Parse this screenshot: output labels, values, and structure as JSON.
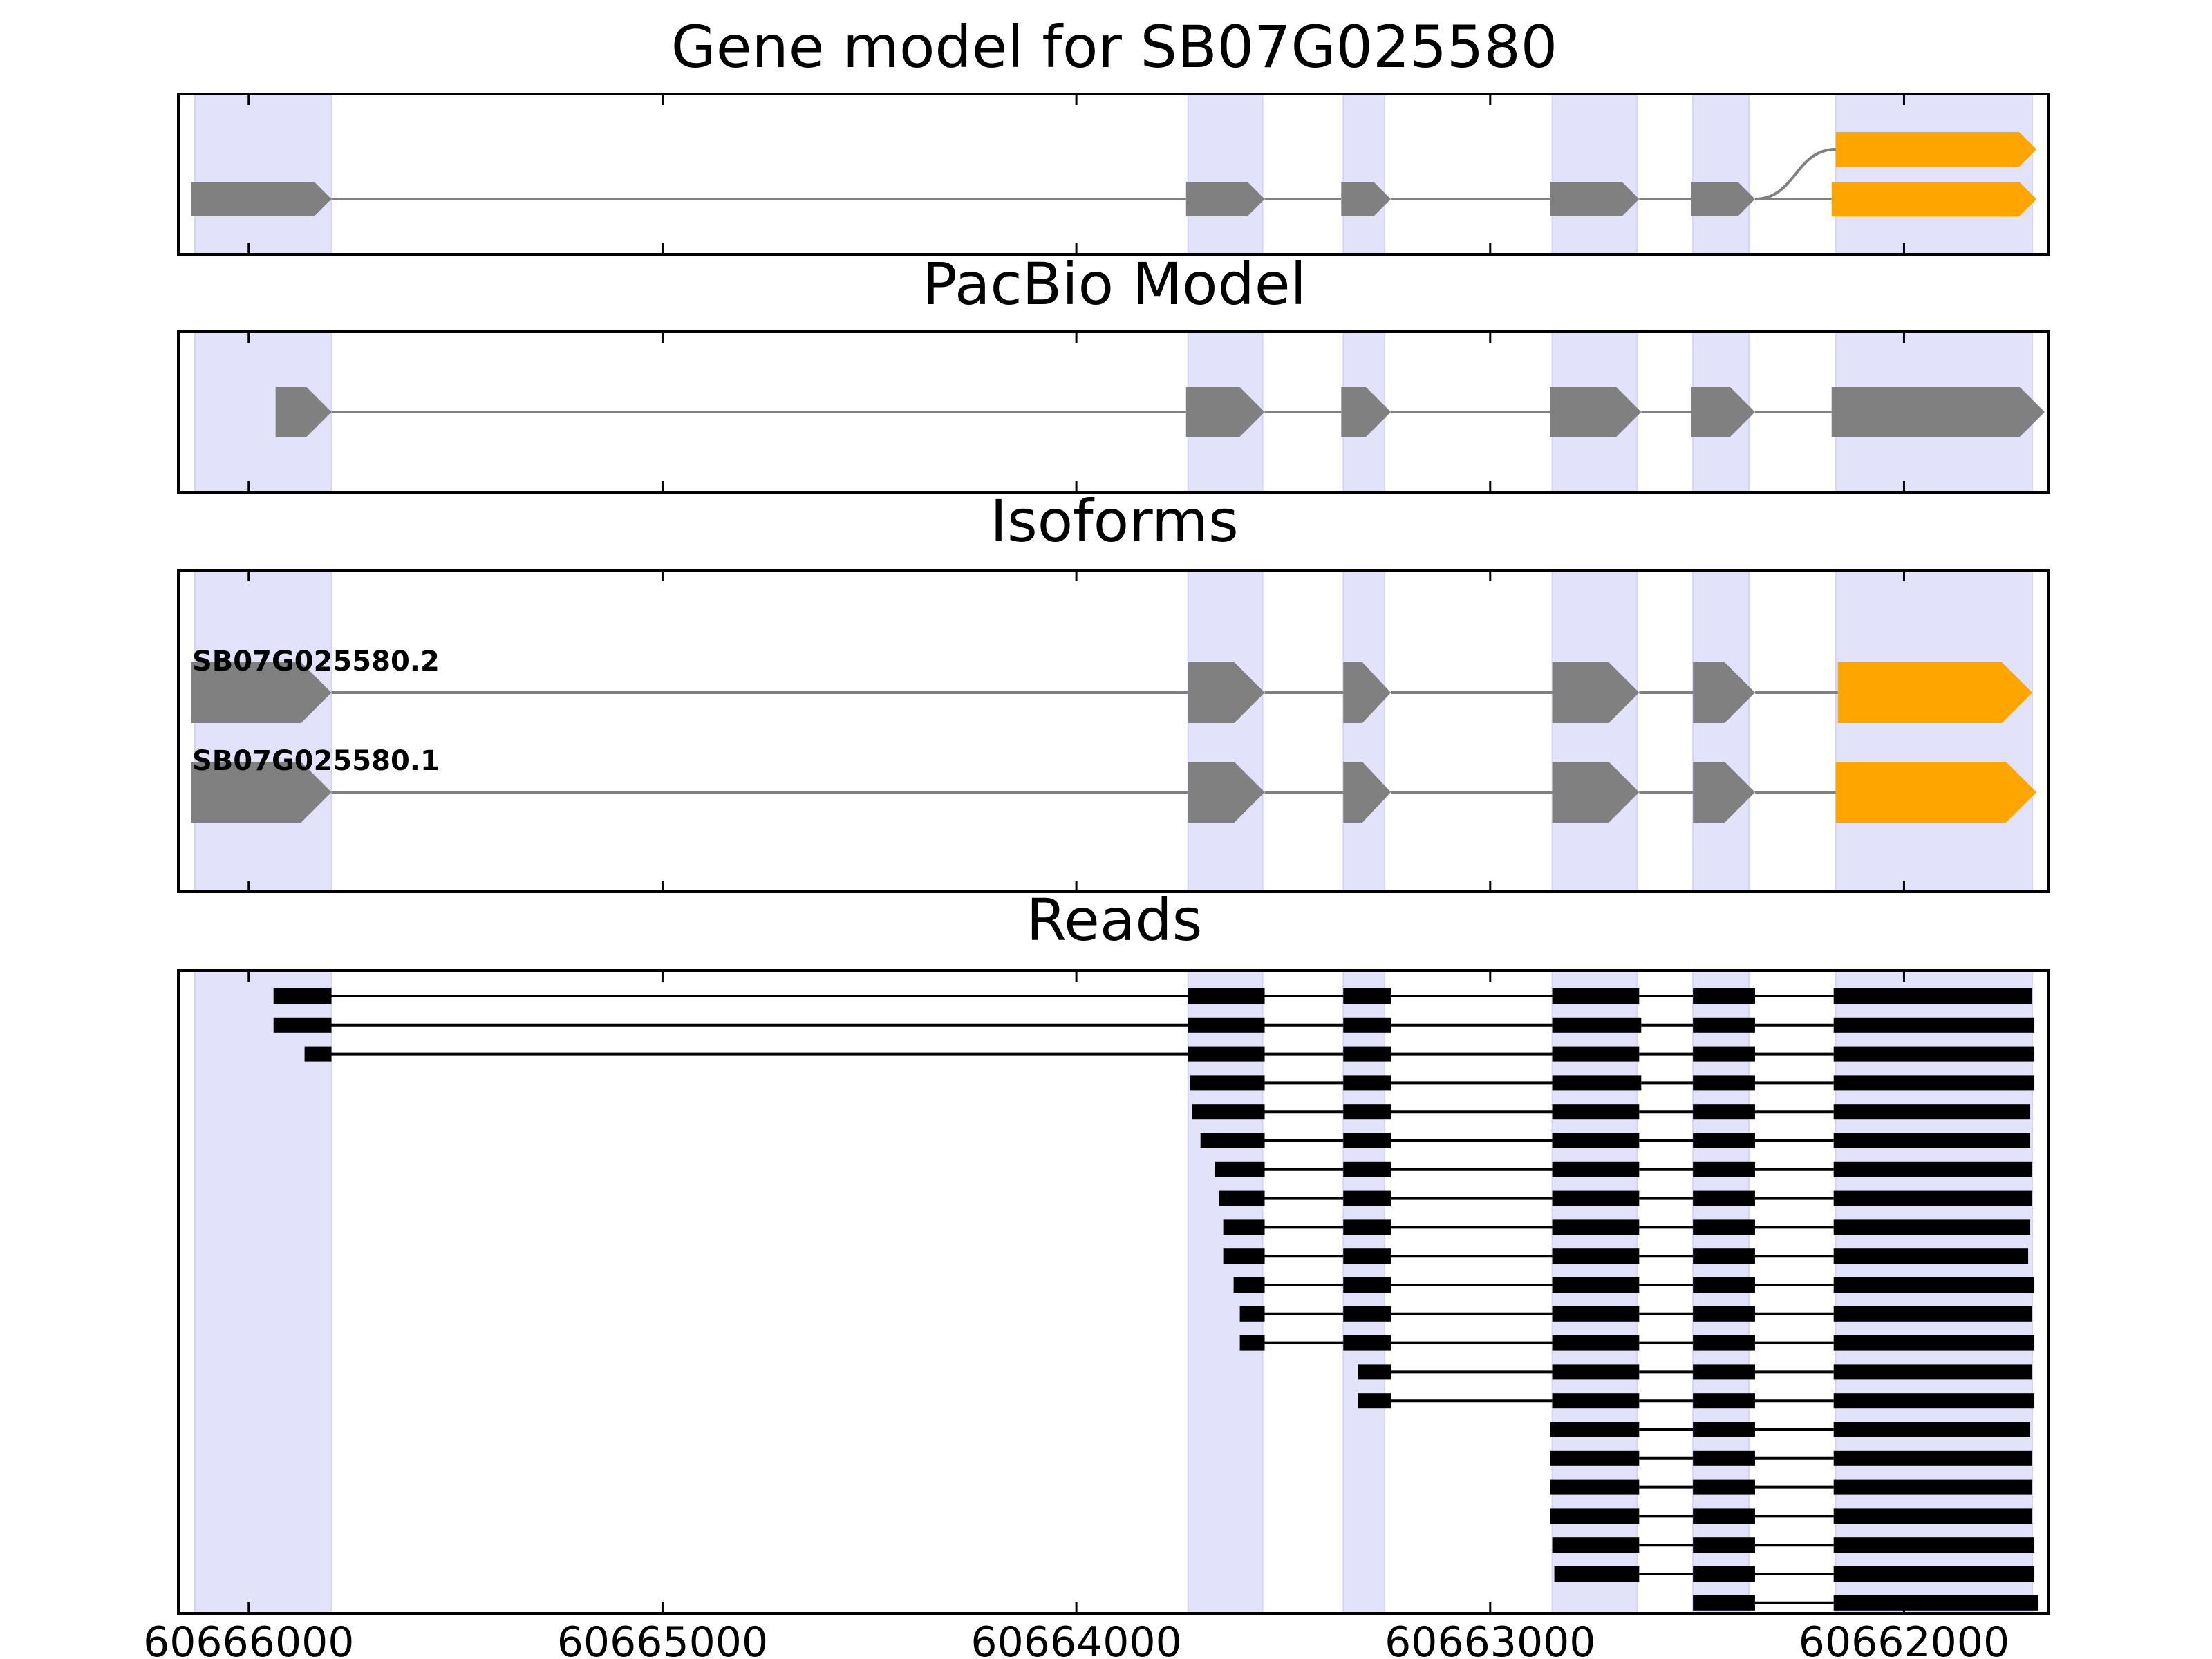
{
  "chart_data": {
    "type": "gene_track",
    "xlim": [
      60666170,
      60661650
    ],
    "xaxis_reversed": true,
    "x_ticks": [
      60666000,
      60665000,
      60664000,
      60663000,
      60662000
    ],
    "x_tick_labels": [
      "60666000",
      "60665000",
      "60664000",
      "60663000",
      "60662000"
    ],
    "colors": {
      "utr": "#808080",
      "cds": "#ffa500",
      "read": "#000000",
      "intron": "#808080",
      "highlight": "#e2e2fb"
    },
    "highlight_regions": [
      [
        60666130,
        60665800
      ],
      [
        60663730,
        60663550
      ],
      [
        60663355,
        60663255
      ],
      [
        60662850,
        60662645
      ],
      [
        60662510,
        60662375
      ],
      [
        60662165,
        60661690
      ]
    ],
    "panels": [
      {
        "title": "Gene model for SB07G025580",
        "exons_layout": "splice_graph",
        "tracks": [
          {
            "row": 0,
            "exons": [
              [
                60662165,
                60661680,
                "cds"
              ]
            ]
          },
          {
            "row": 1,
            "exons": [
              [
                60666140,
                60665800,
                "utr"
              ],
              [
                60663735,
                60663545,
                "utr"
              ],
              [
                60663360,
                60663240,
                "utr"
              ],
              [
                60662855,
                60662640,
                "utr"
              ],
              [
                60662515,
                60662360,
                "utr"
              ],
              [
                60662175,
                60661680,
                "cds"
              ]
            ]
          }
        ],
        "edges": [
          [
            1,
            4,
            0,
            0
          ]
        ]
      },
      {
        "title": "PacBio Model",
        "tracks": [
          {
            "row": 0,
            "exons": [
              [
                60665935,
                60665800,
                "utr"
              ],
              [
                60663735,
                60663545,
                "utr"
              ],
              [
                60663360,
                60663240,
                "utr"
              ],
              [
                60662855,
                60662635,
                "utr"
              ],
              [
                60662515,
                60662360,
                "utr"
              ],
              [
                60662175,
                60661660,
                "utr"
              ]
            ]
          }
        ]
      },
      {
        "title": "Isoforms",
        "isoforms": [
          {
            "name": "SB07G025580.2",
            "exons": [
              [
                60666140,
                60665800,
                "utr"
              ],
              [
                60663730,
                60663545,
                "utr"
              ],
              [
                60663355,
                60663240,
                "utr"
              ],
              [
                60662850,
                60662640,
                "utr"
              ],
              [
                60662510,
                60662360,
                "utr"
              ],
              [
                60662160,
                60661690,
                "cds"
              ]
            ]
          },
          {
            "name": "SB07G025580.1",
            "exons": [
              [
                60666140,
                60665800,
                "utr"
              ],
              [
                60663730,
                60663545,
                "utr"
              ],
              [
                60663355,
                60663240,
                "utr"
              ],
              [
                60662850,
                60662640,
                "utr"
              ],
              [
                60662510,
                60662360,
                "utr"
              ],
              [
                60662165,
                60661680,
                "cds"
              ]
            ]
          }
        ]
      },
      {
        "title": "Reads",
        "reads": [
          [
            [
              60665940,
              60665800
            ],
            [
              60663730,
              60663545
            ],
            [
              60663355,
              60663240
            ],
            [
              60662850,
              60662640
            ],
            [
              60662510,
              60662360
            ],
            [
              60662170,
              60661690
            ]
          ],
          [
            [
              60665940,
              60665800
            ],
            [
              60663730,
              60663545
            ],
            [
              60663355,
              60663240
            ],
            [
              60662850,
              60662635
            ],
            [
              60662510,
              60662360
            ],
            [
              60662170,
              60661685
            ]
          ],
          [
            [
              60665865,
              60665800
            ],
            [
              60663730,
              60663545
            ],
            [
              60663355,
              60663240
            ],
            [
              60662850,
              60662640
            ],
            [
              60662510,
              60662360
            ],
            [
              60662170,
              60661685
            ]
          ],
          [
            [
              60663725,
              60663545
            ],
            [
              60663355,
              60663240
            ],
            [
              60662850,
              60662635
            ],
            [
              60662510,
              60662360
            ],
            [
              60662170,
              60661685
            ]
          ],
          [
            [
              60663720,
              60663545
            ],
            [
              60663355,
              60663240
            ],
            [
              60662850,
              60662640
            ],
            [
              60662510,
              60662360
            ],
            [
              60662170,
              60661695
            ]
          ],
          [
            [
              60663700,
              60663545
            ],
            [
              60663355,
              60663240
            ],
            [
              60662850,
              60662640
            ],
            [
              60662510,
              60662360
            ],
            [
              60662170,
              60661695
            ]
          ],
          [
            [
              60663665,
              60663545
            ],
            [
              60663355,
              60663240
            ],
            [
              60662850,
              60662640
            ],
            [
              60662510,
              60662360
            ],
            [
              60662170,
              60661690
            ]
          ],
          [
            [
              60663655,
              60663545
            ],
            [
              60663355,
              60663240
            ],
            [
              60662850,
              60662640
            ],
            [
              60662510,
              60662360
            ],
            [
              60662170,
              60661690
            ]
          ],
          [
            [
              60663645,
              60663545
            ],
            [
              60663355,
              60663240
            ],
            [
              60662850,
              60662640
            ],
            [
              60662510,
              60662360
            ],
            [
              60662170,
              60661695
            ]
          ],
          [
            [
              60663645,
              60663545
            ],
            [
              60663355,
              60663240
            ],
            [
              60662850,
              60662640
            ],
            [
              60662510,
              60662360
            ],
            [
              60662170,
              60661700
            ]
          ],
          [
            [
              60663620,
              60663545
            ],
            [
              60663355,
              60663240
            ],
            [
              60662850,
              60662640
            ],
            [
              60662510,
              60662360
            ],
            [
              60662170,
              60661685
            ]
          ],
          [
            [
              60663605,
              60663545
            ],
            [
              60663355,
              60663240
            ],
            [
              60662850,
              60662640
            ],
            [
              60662510,
              60662360
            ],
            [
              60662170,
              60661690
            ]
          ],
          [
            [
              60663605,
              60663545
            ],
            [
              60663355,
              60663240
            ],
            [
              60662850,
              60662640
            ],
            [
              60662510,
              60662360
            ],
            [
              60662170,
              60661685
            ]
          ],
          [
            [
              60663320,
              60663240
            ],
            [
              60662850,
              60662640
            ],
            [
              60662510,
              60662360
            ],
            [
              60662170,
              60661690
            ]
          ],
          [
            [
              60663320,
              60663240
            ],
            [
              60662850,
              60662640
            ],
            [
              60662510,
              60662360
            ],
            [
              60662170,
              60661685
            ]
          ],
          [
            [
              60662855,
              60662640
            ],
            [
              60662510,
              60662360
            ],
            [
              60662170,
              60661695
            ]
          ],
          [
            [
              60662855,
              60662640
            ],
            [
              60662510,
              60662360
            ],
            [
              60662170,
              60661690
            ]
          ],
          [
            [
              60662855,
              60662640
            ],
            [
              60662510,
              60662360
            ],
            [
              60662170,
              60661690
            ]
          ],
          [
            [
              60662855,
              60662640
            ],
            [
              60662510,
              60662360
            ],
            [
              60662170,
              60661690
            ]
          ],
          [
            [
              60662850,
              60662640
            ],
            [
              60662510,
              60662360
            ],
            [
              60662170,
              60661685
            ]
          ],
          [
            [
              60662845,
              60662640
            ],
            [
              60662510,
              60662360
            ],
            [
              60662170,
              60661685
            ]
          ],
          [
            [
              60662510,
              60662360
            ],
            [
              60662170,
              60661675
            ]
          ]
        ]
      }
    ]
  }
}
